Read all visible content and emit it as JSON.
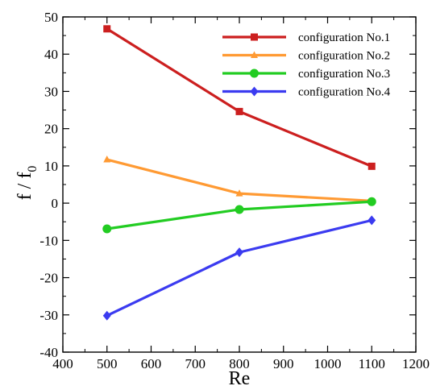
{
  "chart_data": {
    "type": "line",
    "xlabel": "Re",
    "ylabel": {
      "base": "f / f",
      "subscript": "0"
    },
    "xlim": [
      400,
      1200
    ],
    "ylim": [
      -40,
      50
    ],
    "xticks": [
      400,
      500,
      600,
      700,
      800,
      900,
      1000,
      1100,
      1200
    ],
    "yticks": [
      -40,
      -30,
      -20,
      -10,
      0,
      10,
      20,
      30,
      40,
      50
    ],
    "x": [
      500,
      800,
      1100
    ],
    "legend_position": "top-right",
    "grid": false,
    "series": [
      {
        "name": "configuration No.1",
        "color": "#cc1f1f",
        "marker": "square",
        "values": [
          46.8,
          24.6,
          9.9
        ]
      },
      {
        "name": "configuration No.2",
        "color": "#ff9a33",
        "marker": "triangle",
        "values": [
          11.7,
          2.6,
          0.6
        ]
      },
      {
        "name": "configuration No.3",
        "color": "#22cc22",
        "marker": "circle",
        "values": [
          -6.9,
          -1.7,
          0.4
        ]
      },
      {
        "name": "configuration No.4",
        "color": "#3b3bf0",
        "marker": "diamond",
        "values": [
          -30.2,
          -13.2,
          -4.6
        ]
      }
    ]
  }
}
